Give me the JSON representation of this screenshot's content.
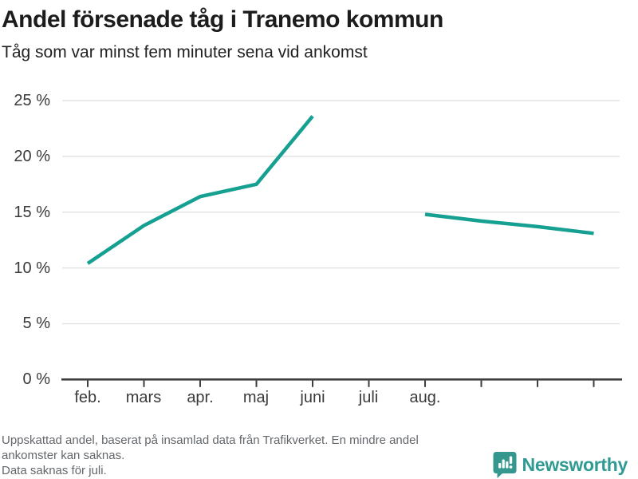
{
  "header": {
    "title": "Andel försenade tåg i Tranemo kommun",
    "subtitle": "Tåg som var minst fem minuter sena vid ankomst"
  },
  "chart_data": {
    "type": "line",
    "title": "Andel försenade tåg i Tranemo kommun",
    "subtitle": "Tåg som var minst fem minuter sena vid ankomst",
    "unit": "%",
    "x_tick_labels": [
      "feb.",
      "mars",
      "apr.",
      "maj",
      "juni",
      "juli",
      "aug.",
      "",
      "",
      ""
    ],
    "y_tick_labels_top_down": [
      "25 %",
      "20 %",
      "15 %",
      "10 %",
      "5 %",
      "0 %"
    ],
    "y_ticks": [
      0,
      5,
      10,
      15,
      20,
      25
    ],
    "ylim": [
      0,
      25
    ],
    "grid": "horizontal",
    "legend": "none",
    "series": [
      {
        "name": "Andel försenade tåg",
        "color": "#16a091",
        "values": [
          10.4,
          13.8,
          16.4,
          17.5,
          23.6,
          null,
          14.8,
          14.2,
          13.7,
          13.1
        ]
      }
    ],
    "missing_data_month": "juli"
  },
  "footer": {
    "lines": [
      "Uppskattad andel, baserat på insamlad data från Trafikverket. En mindre andel",
      "ankomster kan saknas.",
      "Data saknas för juli."
    ]
  },
  "logo": {
    "text": "Newsworthy"
  },
  "colors": {
    "accent": "#16a091",
    "axis": "#3e3e3e",
    "grid": "#e3e3e3",
    "title_text": "#1c1c1c",
    "muted_text": "#63676b",
    "logo_teal": "#2f9a92"
  }
}
